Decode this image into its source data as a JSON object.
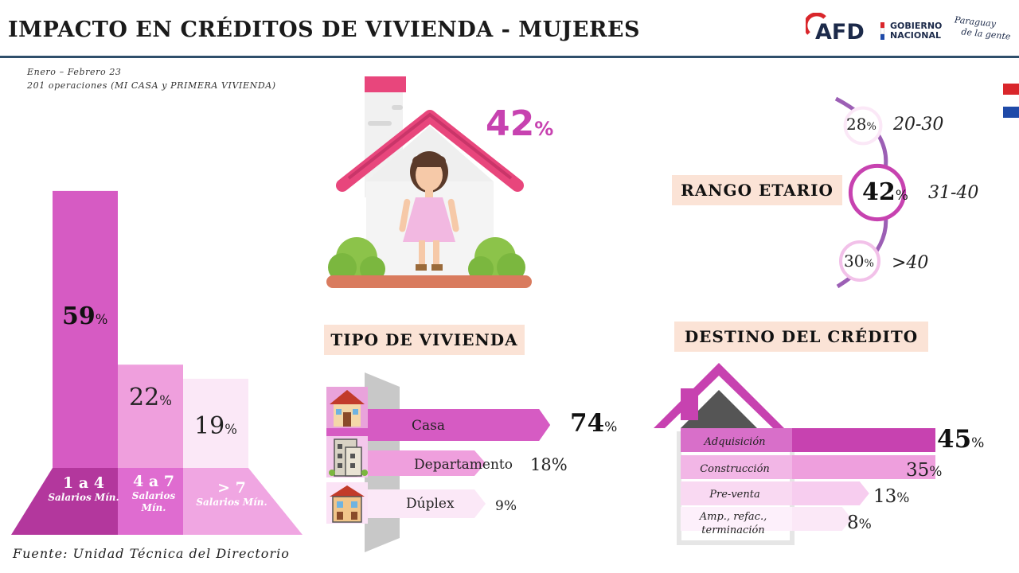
{
  "header": {
    "title": "IMPACTO EN CRÉDITOS DE VIVIENDA - MUJERES",
    "subtitle_line1": "Enero – Febrero 23",
    "subtitle_line2": "201 operaciones (MI CASA y PRIMERA VIVIENDA)",
    "logo_afd": "AFD",
    "logo_gobierno": "GOBIERNO",
    "logo_nacional": "NACIONAL",
    "logo_paraguay_1": "Paraguay",
    "logo_paraguay_2": "de la gente"
  },
  "colors": {
    "magenta_dark": "#c742b0",
    "magenta": "#d65bc3",
    "pink_mid": "#ef9fdd",
    "pink_light": "#fbe8f7",
    "tag_bg": "#fbe3d6",
    "rule": "#2f4f6b"
  },
  "icons": [
    "house-with-woman-icon",
    "house-icon",
    "apartment-building-icon",
    "duplex-icon",
    "house-outline-icon"
  ],
  "woman_house": {
    "pct_value": "42",
    "pct_sign": "%"
  },
  "salary": {
    "bars": [
      {
        "value": "59",
        "sign": "%",
        "label": "1 a 4",
        "sub": "Salarios Mín."
      },
      {
        "value": "22",
        "sign": "%",
        "label": "4 a 7",
        "sub": "Salarios Mín."
      },
      {
        "value": "19",
        "sign": "%",
        "label": "> 7",
        "sub": "Salarios Mín."
      }
    ]
  },
  "tipo": {
    "title": "TIPO DE VIVIENDA",
    "rows": [
      {
        "label": "Casa",
        "value": "74",
        "sign": "%"
      },
      {
        "label": "Departamento",
        "value": "18",
        "sign": "%"
      },
      {
        "label": "Dúplex",
        "value": "9",
        "sign": "%"
      }
    ]
  },
  "rango": {
    "title": "RANGO ETARIO",
    "rows": [
      {
        "value": "28",
        "sign": "%",
        "label": "20-30"
      },
      {
        "value": "42",
        "sign": "%",
        "label": "31-40"
      },
      {
        "value": "30",
        "sign": "%",
        "label": ">40"
      }
    ]
  },
  "destino": {
    "title": "DESTINO DEL CRÉDITO",
    "rows": [
      {
        "label": "Adquisición",
        "value": "45",
        "sign": "%"
      },
      {
        "label": "Construcción",
        "value": "35",
        "sign": "%"
      },
      {
        "label": "Pre-venta",
        "value": "13",
        "sign": "%"
      },
      {
        "label": "Amp., refac., terminación",
        "value": "8",
        "sign": "%"
      }
    ]
  },
  "source": "Fuente: Unidad Técnica del Directorio",
  "chart_data": [
    {
      "type": "bar",
      "title": "",
      "categories": [
        "1 a 4 Salarios Mín.",
        "4 a 7 Salarios Mín.",
        "> 7 Salarios Mín."
      ],
      "values": [
        59,
        22,
        19
      ]
    },
    {
      "type": "bar",
      "title": "TIPO DE VIVIENDA",
      "categories": [
        "Casa",
        "Departamento",
        "Dúplex"
      ],
      "values": [
        74,
        18,
        9
      ]
    },
    {
      "type": "bar",
      "title": "RANGO ETARIO",
      "categories": [
        "20-30",
        "31-40",
        ">40"
      ],
      "values": [
        28,
        42,
        30
      ]
    },
    {
      "type": "bar",
      "title": "DESTINO DEL CRÉDITO",
      "categories": [
        "Adquisición",
        "Construcción",
        "Pre-venta",
        "Amp., refac., terminación"
      ],
      "values": [
        45,
        35,
        13,
        8
      ]
    }
  ]
}
